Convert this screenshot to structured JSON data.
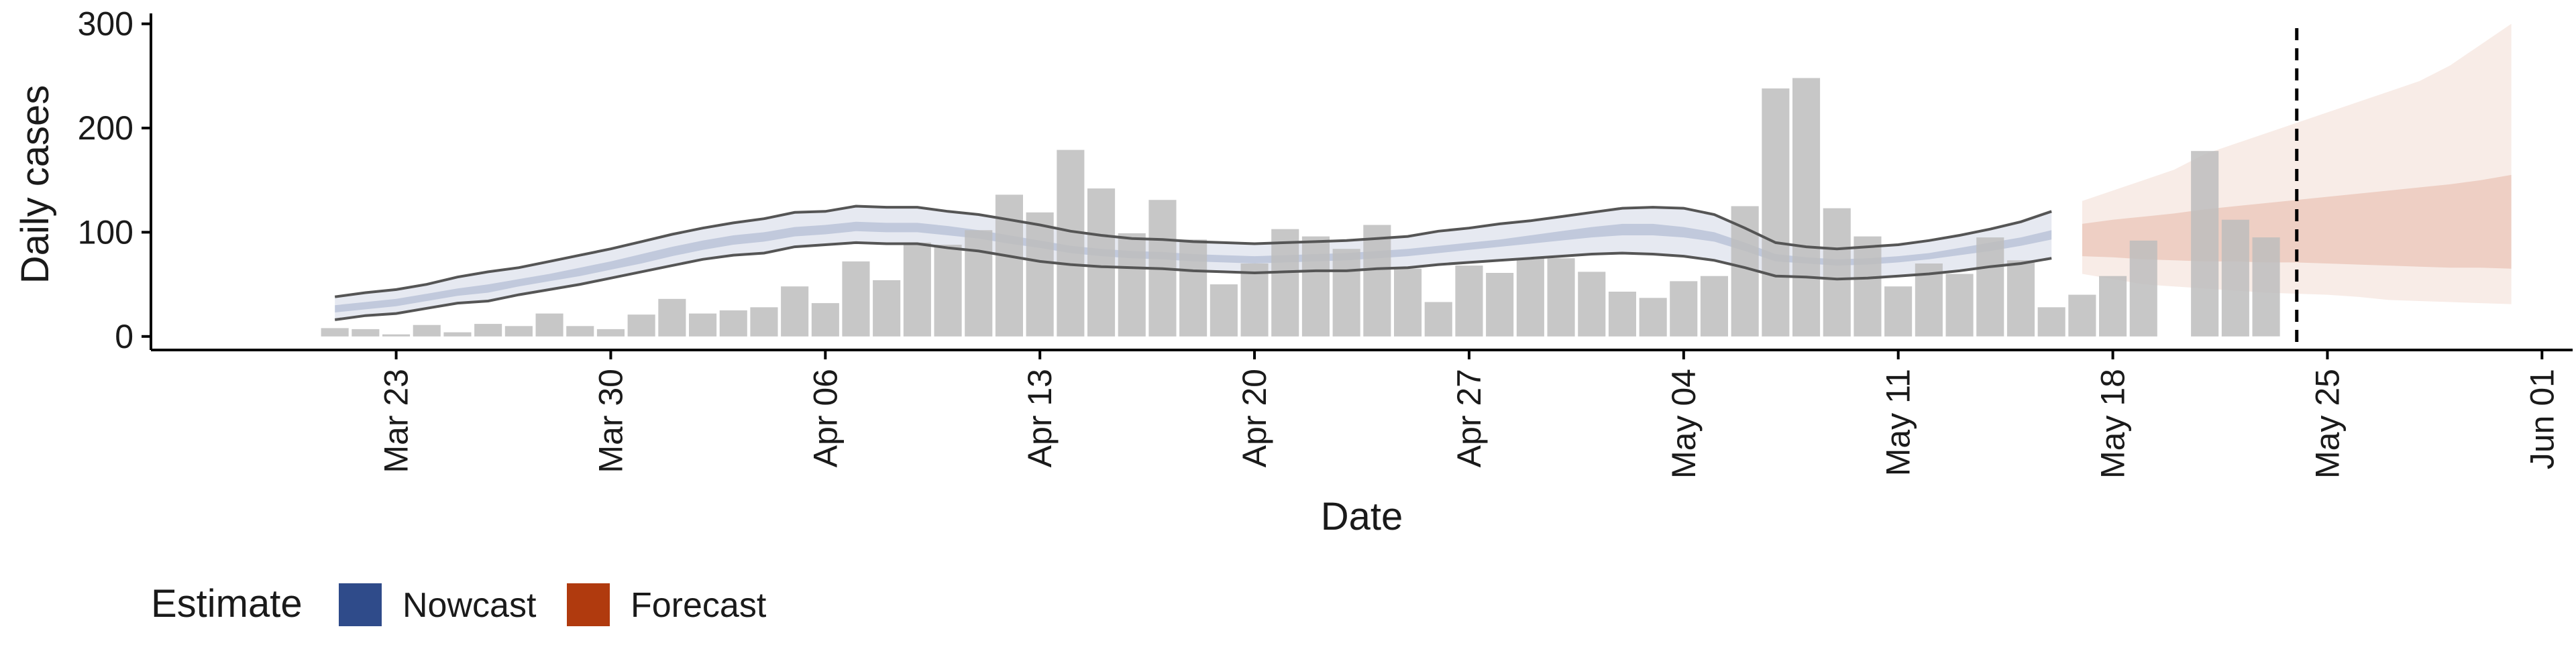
{
  "chart_data": {
    "type": "bar",
    "xlabel": "Date",
    "ylabel": "Daily cases",
    "ylim": [
      -13,
      310
    ],
    "xlim": [
      "2020-03-15",
      "2020-06-02"
    ],
    "y_ticks": [
      0,
      100,
      200,
      300
    ],
    "x_ticks": [
      {
        "date": "2020-03-23",
        "label": "Mar 23"
      },
      {
        "date": "2020-03-30",
        "label": "Mar 30"
      },
      {
        "date": "2020-04-06",
        "label": "Apr 06"
      },
      {
        "date": "2020-04-13",
        "label": "Apr 13"
      },
      {
        "date": "2020-04-20",
        "label": "Apr 20"
      },
      {
        "date": "2020-04-27",
        "label": "Apr 27"
      },
      {
        "date": "2020-05-04",
        "label": "May 04"
      },
      {
        "date": "2020-05-11",
        "label": "May 11"
      },
      {
        "date": "2020-05-18",
        "label": "May 18"
      },
      {
        "date": "2020-05-25",
        "label": "May 25"
      },
      {
        "date": "2020-06-01",
        "label": "Jun 01"
      }
    ],
    "grid": false,
    "legend": {
      "position": "bottom-left",
      "title": "Estimate",
      "entries": [
        {
          "label": "Nowcast",
          "color": "#2f4b8a"
        },
        {
          "label": "Forecast",
          "color": "#b03a0e"
        }
      ]
    },
    "colors": {
      "bars": "#bdbdbd",
      "nowcast": "#2f4b8a",
      "forecast": "#c8603a",
      "outline": "#555555",
      "vline": "#000000"
    },
    "bars": {
      "start_date": "2020-03-21",
      "values": [
        8,
        7,
        2,
        11,
        4,
        12,
        10,
        22,
        10,
        7,
        21,
        36,
        22,
        25,
        28,
        48,
        32,
        72,
        54,
        90,
        88,
        102,
        136,
        119,
        179,
        142,
        99,
        131,
        93,
        50,
        70,
        103,
        96,
        84,
        107,
        65,
        33,
        68,
        61,
        75,
        75,
        62,
        43,
        37,
        53,
        58,
        125,
        238,
        248,
        123,
        96,
        48,
        70,
        60,
        95,
        73,
        28,
        40,
        58,
        92,
        0,
        178,
        112,
        95
      ]
    },
    "nowcast": {
      "start_date": "2020-03-21",
      "outer_lower": [
        16,
        20,
        22,
        27,
        32,
        34,
        40,
        45,
        50,
        56,
        62,
        68,
        74,
        78,
        80,
        86,
        88,
        90,
        89,
        89,
        85,
        82,
        77,
        72,
        69,
        67,
        66,
        65,
        63,
        62,
        61,
        62,
        63,
        63,
        65,
        66,
        69,
        71,
        73,
        75,
        77,
        79,
        80,
        79,
        77,
        73,
        66,
        58,
        57,
        55,
        56,
        58,
        60,
        63,
        67,
        70,
        75
      ],
      "outer_upper": [
        38,
        42,
        45,
        50,
        57,
        62,
        66,
        72,
        78,
        84,
        91,
        98,
        104,
        109,
        113,
        119,
        120,
        125,
        124,
        124,
        120,
        117,
        112,
        107,
        101,
        97,
        94,
        93,
        91,
        90,
        89,
        90,
        91,
        92,
        94,
        96,
        101,
        104,
        108,
        111,
        115,
        119,
        123,
        124,
        123,
        117,
        104,
        90,
        86,
        84,
        86,
        88,
        92,
        97,
        103,
        110,
        120
      ],
      "inner_lower": [
        23,
        26,
        29,
        34,
        39,
        42,
        48,
        53,
        58,
        64,
        70,
        77,
        83,
        88,
        91,
        96,
        98,
        101,
        100,
        100,
        97,
        94,
        89,
        85,
        80,
        77,
        75,
        74,
        72,
        71,
        70,
        71,
        72,
        73,
        75,
        77,
        80,
        83,
        86,
        89,
        92,
        95,
        97,
        97,
        95,
        91,
        82,
        72,
        70,
        68,
        69,
        71,
        74,
        78,
        82,
        87,
        93
      ],
      "inner_upper": [
        30,
        33,
        36,
        41,
        46,
        50,
        55,
        60,
        66,
        72,
        79,
        86,
        92,
        97,
        100,
        105,
        107,
        110,
        109,
        109,
        106,
        102,
        97,
        92,
        87,
        84,
        82,
        81,
        79,
        78,
        77,
        78,
        79,
        80,
        82,
        84,
        87,
        90,
        93,
        97,
        101,
        105,
        108,
        108,
        105,
        100,
        90,
        79,
        76,
        74,
        75,
        77,
        80,
        85,
        90,
        95,
        102
      ]
    },
    "forecast": {
      "start_date": "2020-05-17",
      "outer_lower": [
        60,
        55,
        50,
        48,
        46,
        44,
        42,
        41,
        40,
        38,
        35,
        34,
        33,
        32,
        31
      ],
      "outer_upper": [
        130,
        140,
        150,
        160,
        175,
        185,
        195,
        205,
        215,
        225,
        235,
        245,
        260,
        280,
        300
      ],
      "inner_lower": [
        77,
        76,
        74,
        73,
        72,
        72,
        71,
        71,
        70,
        69,
        68,
        67,
        66,
        66,
        65
      ],
      "inner_upper": [
        108,
        112,
        115,
        118,
        122,
        125,
        128,
        131,
        134,
        137,
        140,
        143,
        146,
        150,
        155
      ]
    },
    "vline_date": "2020-05-24"
  }
}
